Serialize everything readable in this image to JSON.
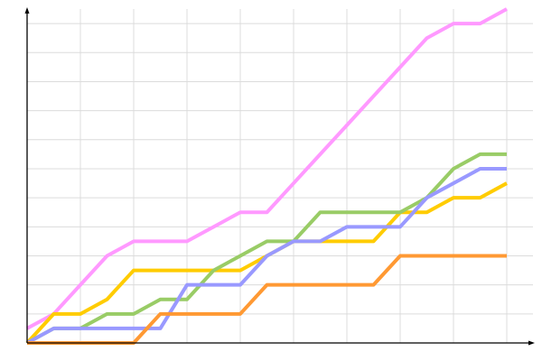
{
  "chart_data": {
    "type": "line",
    "title": "",
    "xlabel": "",
    "ylabel": "",
    "xlim": [
      0,
      19
    ],
    "ylim": [
      0,
      11.5
    ],
    "x_grid_step": 2,
    "y_grid_step": 1,
    "grid": true,
    "legend": "none",
    "x": [
      0,
      1,
      2,
      3,
      4,
      5,
      6,
      7,
      8,
      9,
      10,
      11,
      12,
      13,
      14,
      15,
      16,
      17,
      18
    ],
    "series": [
      {
        "color": "#ff99ff",
        "values": [
          0.5,
          1,
          2,
          3,
          3.5,
          3.5,
          3.5,
          4,
          4.5,
          4.5,
          5.5,
          6.5,
          7.5,
          8.5,
          9.5,
          10.5,
          11,
          11,
          11.5
        ]
      },
      {
        "color": "#ffcc00",
        "values": [
          0,
          1,
          1,
          1.5,
          2.5,
          2.5,
          2.5,
          2.5,
          2.5,
          3,
          3.5,
          3.5,
          3.5,
          3.5,
          4.5,
          4.5,
          5,
          5,
          5.5
        ]
      },
      {
        "color": "#99cc66",
        "values": [
          0,
          0.5,
          0.5,
          1,
          1,
          1.5,
          1.5,
          2.5,
          3,
          3.5,
          3.5,
          4.5,
          4.5,
          4.5,
          4.5,
          5,
          6,
          6.5,
          6.5
        ]
      },
      {
        "color": "#9999ff",
        "values": [
          0,
          0.5,
          0.5,
          0.5,
          0.5,
          0.5,
          2,
          2,
          2,
          3,
          3.5,
          3.5,
          4,
          4,
          4,
          5,
          5.5,
          6,
          6
        ]
      },
      {
        "color": "#ff9933",
        "values": [
          0,
          0,
          0,
          0,
          0,
          1,
          1,
          1,
          1,
          2,
          2,
          2,
          2,
          2,
          3,
          3,
          3,
          3,
          3
        ]
      }
    ]
  }
}
